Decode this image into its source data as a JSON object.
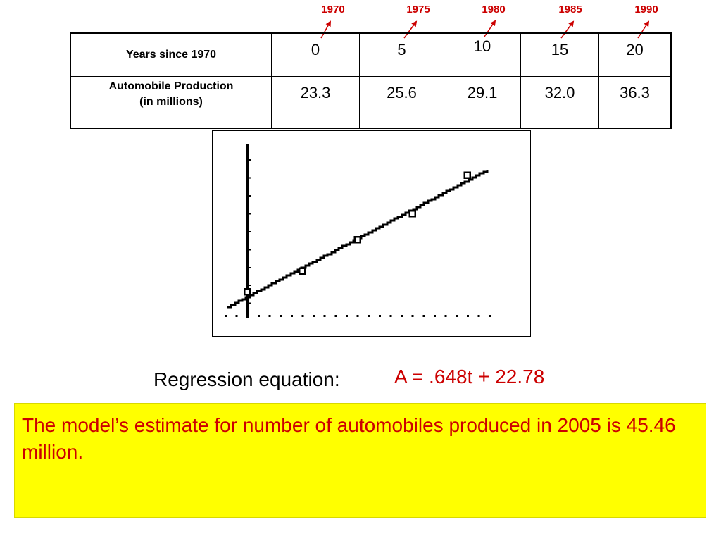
{
  "year_annotations": [
    "1970",
    "1975",
    "1980",
    "1985",
    "1990"
  ],
  "table": {
    "row1_header": "Years since 1970",
    "row1_values": [
      "0",
      "5",
      "10",
      "15",
      "20"
    ],
    "row2_header_line1": "Automobile Production",
    "row2_header_line2": "(in millions)",
    "row2_values": [
      "23.3",
      "25.6",
      "29.1",
      "32.0",
      "36.3"
    ]
  },
  "chart_data": {
    "type": "scatter",
    "x": [
      0,
      5,
      10,
      15,
      20
    ],
    "y": [
      23.3,
      25.6,
      29.1,
      32.0,
      36.3
    ],
    "regression": {
      "slope": 0.648,
      "intercept": 22.78
    },
    "xlim": [
      -2,
      22
    ],
    "ylim": [
      20.8,
      39.8
    ],
    "y_ticks": [
      22,
      24,
      26,
      28,
      30,
      32,
      34,
      36,
      38
    ],
    "x_ticks": [
      -2,
      -1,
      0,
      1,
      2,
      3,
      4,
      5,
      6,
      7,
      8,
      9,
      10,
      11,
      12,
      13,
      14,
      15,
      16,
      17,
      18,
      19,
      20,
      21,
      22
    ],
    "grid": false,
    "style": "calculator-screen"
  },
  "equation": {
    "label": "Regression equation:",
    "value": "A = .648t + 22.78"
  },
  "estimate": {
    "text": "The model’s estimate for number of automobiles produced in 2005 is 45.46 million."
  },
  "colors": {
    "annotation": "#cc0000",
    "highlight_box": "#ffff00",
    "ink": "#000000"
  }
}
